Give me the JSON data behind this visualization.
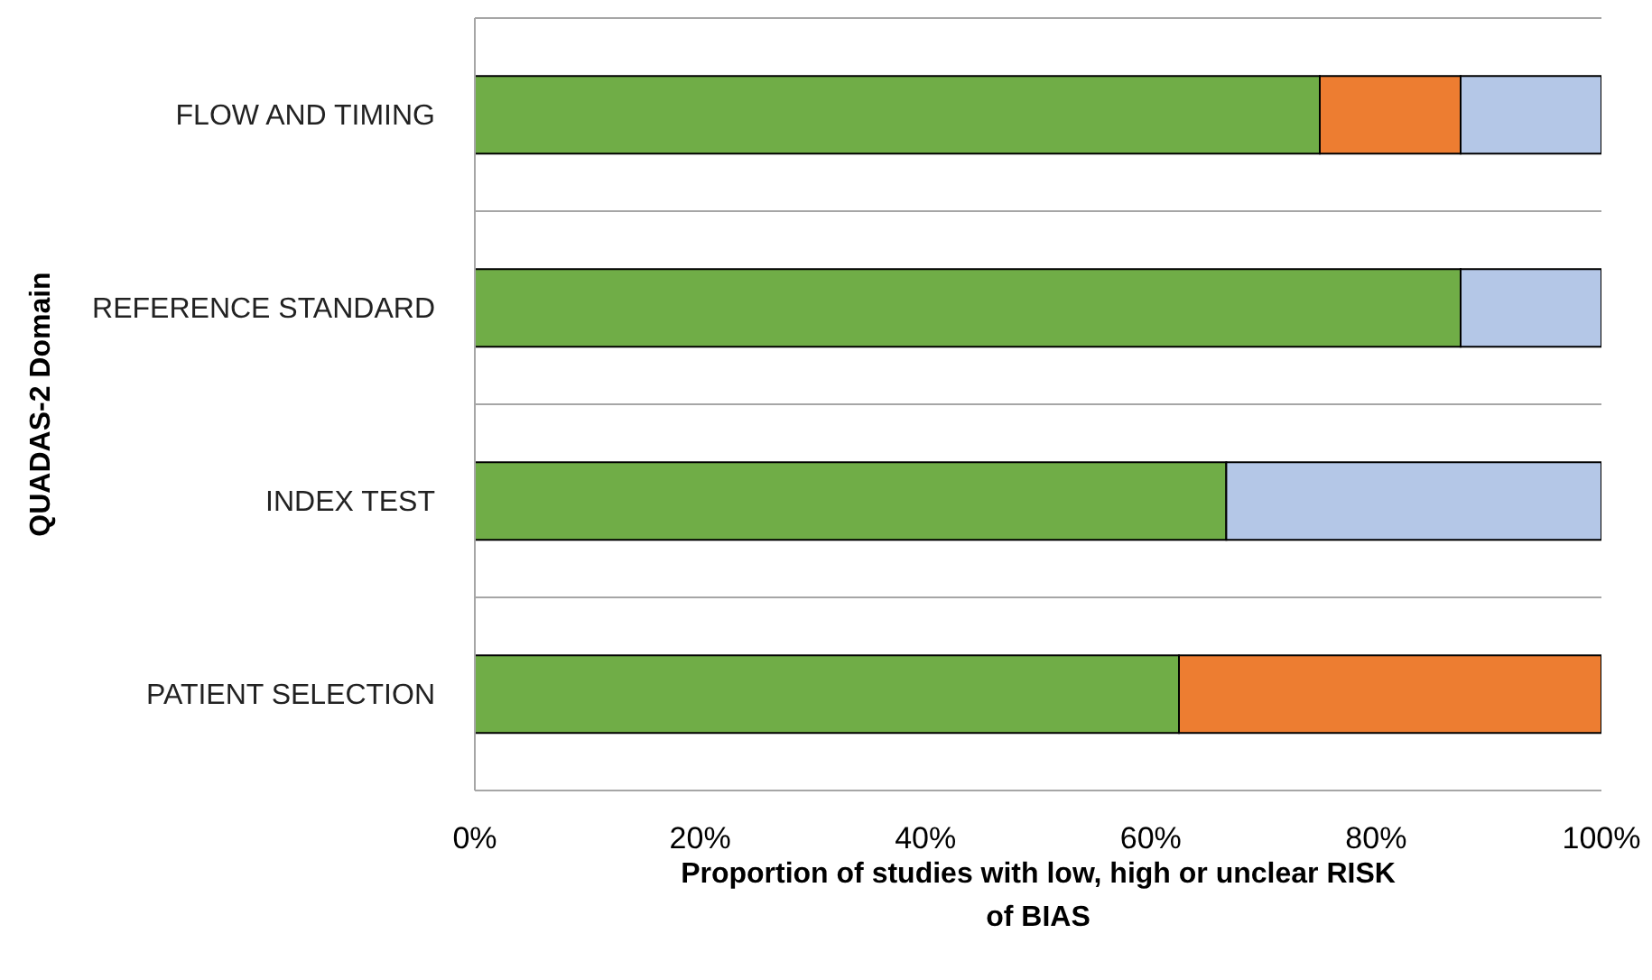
{
  "chart_data": {
    "type": "bar",
    "orientation": "horizontal",
    "stacked": true,
    "ylabel": "QUADAS-2 Domain",
    "xlabel": "Proportion of studies with low, high or unclear RISK of BIAS",
    "categories": [
      "FLOW AND TIMING",
      "REFERENCE STANDARD",
      "INDEX TEST ",
      "PATIENT SELECTION"
    ],
    "series": [
      {
        "color": "#70ad47",
        "values": [
          75,
          87.5,
          66.7,
          62.5
        ]
      },
      {
        "color": "#ed7d31",
        "values": [
          12.5,
          null,
          null,
          37.5
        ]
      },
      {
        "color": "#b4c7e7",
        "values": [
          12.5,
          12.5,
          33.3,
          null
        ]
      }
    ],
    "xlim": [
      0,
      100
    ],
    "xticks": [
      {
        "value": 0,
        "label": "0%"
      },
      {
        "value": 20,
        "label": "20%"
      },
      {
        "value": 40,
        "label": "40%"
      },
      {
        "value": 60,
        "label": "60%"
      },
      {
        "value": 80,
        "label": "80%"
      },
      {
        "value": 100,
        "label": "100%"
      }
    ],
    "grid": "y"
  }
}
